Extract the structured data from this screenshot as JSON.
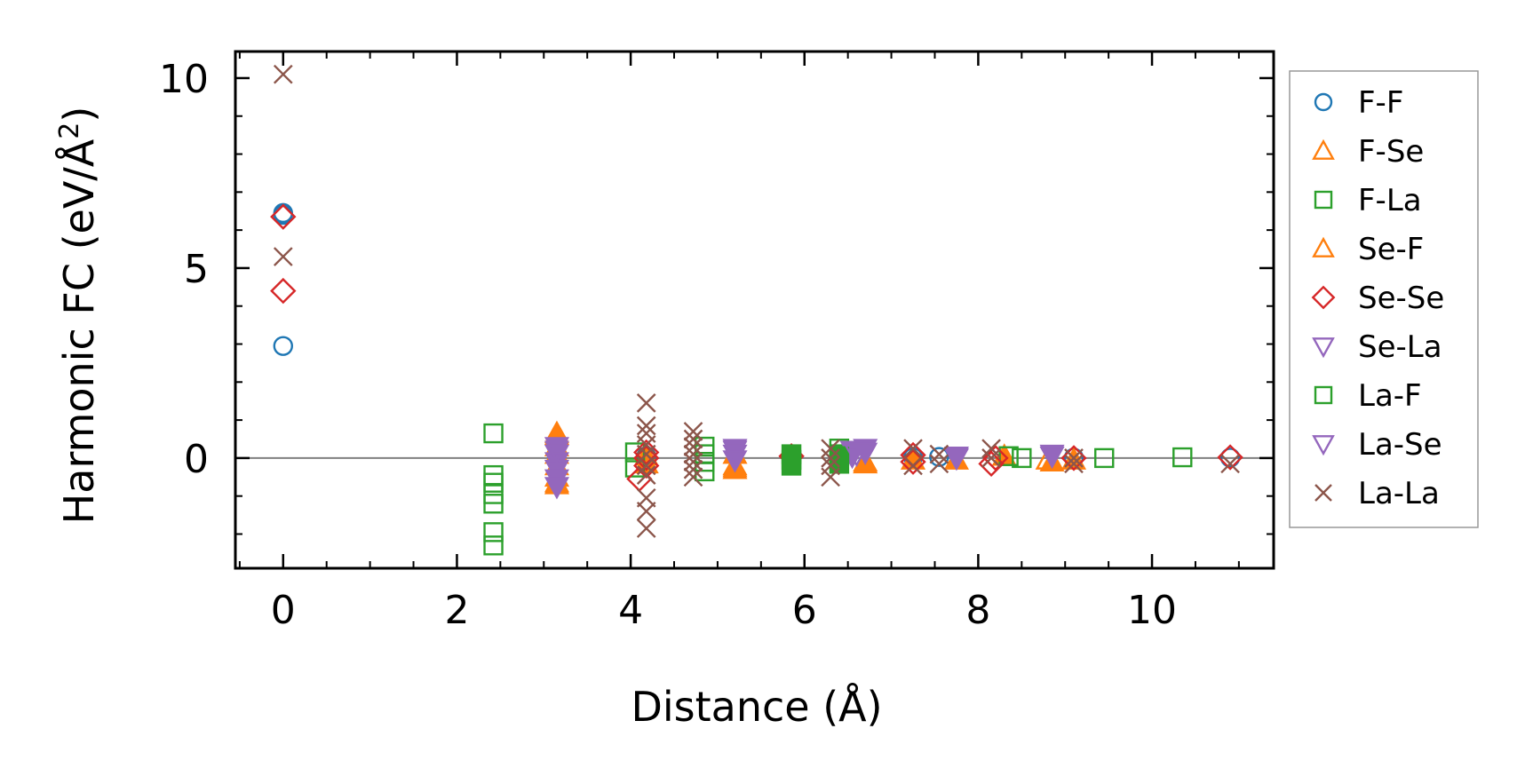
{
  "chart_data": {
    "type": "scatter",
    "title": "",
    "xlabel": "Distance (Å)",
    "ylabel": "Harmonic FC (eV/Å²)",
    "ylabel_parts": {
      "main": "Harmonic FC (eV/Å",
      "sup": "2",
      "close": ")"
    },
    "xlim": [
      -0.55,
      11.4
    ],
    "ylim": [
      -2.9,
      10.7
    ],
    "xticks": [
      0,
      2,
      4,
      6,
      8,
      10
    ],
    "xtick_labels": [
      "0",
      "2",
      "4",
      "6",
      "8",
      "10"
    ],
    "yticks": [
      0,
      5,
      10
    ],
    "ytick_labels": [
      "0",
      "5",
      "10"
    ],
    "minor_xstep": 0.5,
    "minor_ystep": 1,
    "zero_line": true,
    "grid": false,
    "legend_position": "right-outside",
    "series": [
      {
        "name": "F-F",
        "marker": "circle",
        "color": "#1f77b4",
        "filled": false,
        "points": [
          [
            0,
            6.45
          ],
          [
            0,
            2.95
          ],
          [
            0,
            6.4
          ],
          [
            4.18,
            0.05
          ],
          [
            5.85,
            0.02
          ],
          [
            7.25,
            0.02
          ],
          [
            7.55,
            0.03
          ],
          [
            9.1,
            0.01
          ],
          [
            10.9,
            0.01
          ]
        ]
      },
      {
        "name": "F-Se",
        "marker": "triangle-up",
        "color": "#ff7f0e",
        "filled": true,
        "points": [
          [
            3.15,
            0.65
          ],
          [
            3.15,
            0.3
          ],
          [
            3.15,
            -0.2
          ],
          [
            3.15,
            -0.5
          ],
          [
            3.15,
            -0.7
          ],
          [
            3.15,
            0.1
          ],
          [
            4.18,
            0.05
          ],
          [
            4.18,
            -0.15
          ],
          [
            5.2,
            -0.2
          ],
          [
            5.2,
            -0.3
          ],
          [
            5.2,
            0.1
          ],
          [
            6.7,
            -0.15
          ],
          [
            7.25,
            -0.05
          ],
          [
            7.75,
            -0.05
          ],
          [
            8.3,
            0.05
          ],
          [
            8.85,
            -0.1
          ],
          [
            9.1,
            -0.05
          ]
        ]
      },
      {
        "name": "F-La",
        "marker": "square",
        "color": "#2ca02c",
        "filled": false,
        "points": [
          [
            2.42,
            0.65
          ],
          [
            2.42,
            -0.45
          ],
          [
            2.42,
            -0.65
          ],
          [
            2.42,
            -0.95
          ],
          [
            2.42,
            -1.2
          ],
          [
            2.42,
            -1.95
          ],
          [
            2.42,
            -2.3
          ],
          [
            4.05,
            0.15
          ],
          [
            4.05,
            -0.25
          ],
          [
            4.85,
            0.3
          ],
          [
            4.85,
            0.1
          ],
          [
            4.85,
            -0.1
          ],
          [
            4.85,
            -0.35
          ],
          [
            6.4,
            0.25
          ],
          [
            6.4,
            0.1
          ],
          [
            8.35,
            0.05
          ],
          [
            8.5,
            0.0
          ],
          [
            9.45,
            0.0
          ],
          [
            10.35,
            0.02
          ]
        ]
      },
      {
        "name": "Se-F",
        "marker": "triangle-up",
        "color": "#ff7f0e",
        "filled": false,
        "points": [
          [
            3.15,
            0.6
          ],
          [
            3.15,
            -0.65
          ],
          [
            5.2,
            -0.25
          ],
          [
            6.7,
            -0.1
          ],
          [
            8.8,
            -0.05
          ]
        ]
      },
      {
        "name": "Se-Se",
        "marker": "diamond",
        "color": "#d62728",
        "filled": false,
        "points": [
          [
            0,
            6.35
          ],
          [
            0,
            4.4
          ],
          [
            4.1,
            -0.55
          ],
          [
            4.18,
            0.15
          ],
          [
            4.18,
            -0.2
          ],
          [
            4.18,
            0.0
          ],
          [
            5.85,
            0.05
          ],
          [
            7.25,
            0.08
          ],
          [
            7.25,
            -0.1
          ],
          [
            8.15,
            -0.15
          ],
          [
            8.2,
            0.0
          ],
          [
            9.1,
            0.0
          ],
          [
            10.9,
            0.02
          ]
        ]
      },
      {
        "name": "Se-La",
        "marker": "triangle-down",
        "color": "#9467bd",
        "filled": true,
        "points": [
          [
            3.15,
            0.3
          ],
          [
            3.15,
            0.1
          ],
          [
            3.15,
            -0.1
          ],
          [
            3.15,
            -0.3
          ],
          [
            3.15,
            -0.55
          ],
          [
            3.15,
            -0.75
          ],
          [
            5.2,
            0.25
          ],
          [
            5.2,
            0.1
          ],
          [
            5.2,
            -0.05
          ],
          [
            6.55,
            0.2
          ],
          [
            6.55,
            0.05
          ],
          [
            6.7,
            0.25
          ],
          [
            6.7,
            0.15
          ],
          [
            7.75,
            0.05
          ],
          [
            8.85,
            0.1
          ]
        ]
      },
      {
        "name": "La-F",
        "marker": "square",
        "color": "#2ca02c",
        "filled": true,
        "points": [
          [
            5.85,
            0.1
          ],
          [
            5.85,
            -0.05
          ],
          [
            5.85,
            -0.2
          ],
          [
            6.4,
            0.05
          ],
          [
            6.4,
            -0.15
          ]
        ]
      },
      {
        "name": "La-Se",
        "marker": "triangle-down",
        "color": "#9467bd",
        "filled": false,
        "points": [
          [
            3.15,
            0.2
          ],
          [
            5.2,
            0.2
          ],
          [
            6.6,
            0.1
          ],
          [
            7.75,
            0.0
          ],
          [
            8.85,
            0.05
          ]
        ]
      },
      {
        "name": "La-La",
        "marker": "x",
        "color": "#8c564b",
        "filled": false,
        "points": [
          [
            0,
            10.1
          ],
          [
            0,
            5.3
          ],
          [
            4.18,
            1.45
          ],
          [
            4.18,
            0.85
          ],
          [
            4.18,
            0.65
          ],
          [
            4.18,
            0.35
          ],
          [
            4.18,
            0.1
          ],
          [
            4.18,
            -0.2
          ],
          [
            4.18,
            -0.45
          ],
          [
            4.18,
            -1.05
          ],
          [
            4.18,
            -1.4
          ],
          [
            4.18,
            -1.85
          ],
          [
            4.72,
            0.7
          ],
          [
            4.72,
            0.5
          ],
          [
            4.72,
            0.3
          ],
          [
            4.72,
            0.1
          ],
          [
            4.72,
            -0.1
          ],
          [
            4.72,
            -0.3
          ],
          [
            4.72,
            -0.5
          ],
          [
            6.3,
            0.25
          ],
          [
            6.3,
            0.0
          ],
          [
            6.3,
            -0.2
          ],
          [
            6.3,
            -0.5
          ],
          [
            7.25,
            0.25
          ],
          [
            7.25,
            -0.2
          ],
          [
            7.55,
            0.1
          ],
          [
            7.55,
            -0.15
          ],
          [
            8.15,
            0.25
          ],
          [
            8.15,
            0.0
          ],
          [
            9.1,
            0.0
          ],
          [
            9.1,
            -0.15
          ],
          [
            10.9,
            -0.15
          ]
        ]
      }
    ]
  }
}
